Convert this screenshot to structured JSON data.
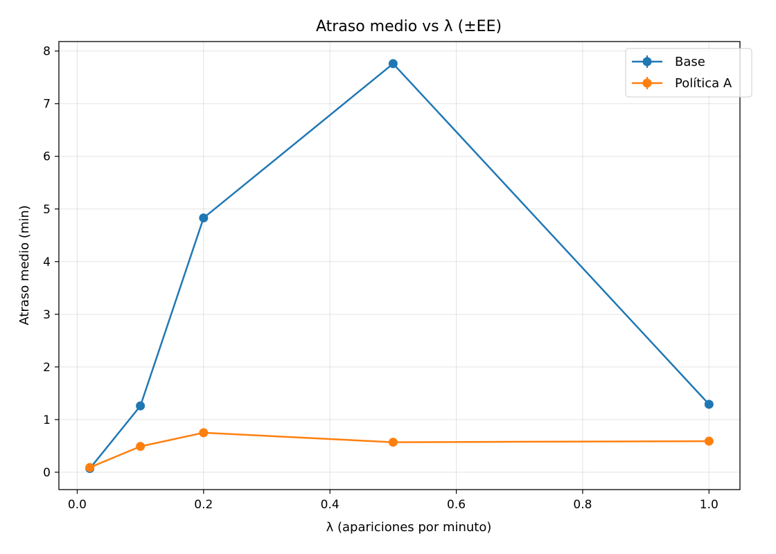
{
  "chart_data": {
    "type": "line",
    "title": "Atraso medio vs λ (±EE)",
    "xlabel": "λ (apariciones por minuto)",
    "ylabel": "Atraso medio (min)",
    "xlim": [
      -0.029,
      1.049
    ],
    "ylim": [
      -0.33,
      8.18
    ],
    "x_ticks": [
      0.0,
      0.2,
      0.4,
      0.6,
      0.8,
      1.0
    ],
    "x_tick_labels": [
      "0.0",
      "0.2",
      "0.4",
      "0.6",
      "0.8",
      "1.0"
    ],
    "y_ticks": [
      0,
      1,
      2,
      3,
      4,
      5,
      6,
      7,
      8
    ],
    "y_tick_labels": [
      "0",
      "1",
      "2",
      "3",
      "4",
      "5",
      "6",
      "7",
      "8"
    ],
    "grid": true,
    "legend_position": "top-right",
    "x": [
      0.02,
      0.1,
      0.2,
      0.5,
      1.0
    ],
    "series": [
      {
        "name": "Base",
        "color": "#1f77b4",
        "marker": "circle",
        "values": [
          0.07,
          1.26,
          4.83,
          7.76,
          1.29
        ]
      },
      {
        "name": "Política A",
        "color": "#ff7f0e",
        "marker": "circle",
        "values": [
          0.09,
          0.49,
          0.75,
          0.57,
          0.59
        ]
      }
    ]
  }
}
